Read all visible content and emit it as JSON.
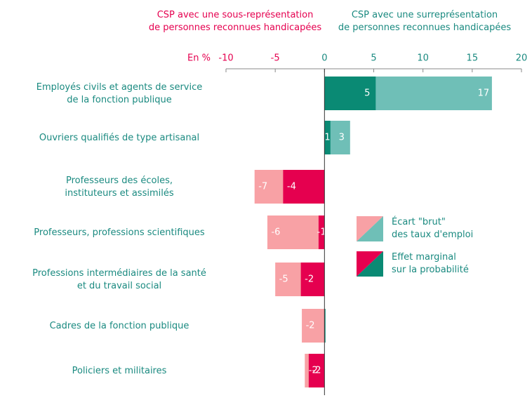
{
  "chart_data": {
    "type": "hbar_overlap",
    "annotations": [
      {
        "text": "CSP avec une sous-représentation\nde personnes reconnues handicapées",
        "color": "#e5004f"
      },
      {
        "text": "CSP avec une surreprésentation\nde personnes reconnues handicapées",
        "color": "#1a8a80"
      }
    ],
    "xlabel": "En %",
    "categories": [
      "Employés civils et agents de service\nde la fonction publique",
      "Ouvriers qualifiés de type artisanal",
      "Professeurs des écoles,\ninstituteurs et assimilés",
      "Professeurs, professions scientifiques",
      "Professions intermédiaires de la santé\net du travail social",
      "Cadres de la fonction publique",
      "Policiers et militaires"
    ],
    "series": [
      {
        "name": "Écart \"brut\"\ndes taux d'emploi",
        "color": {
          "positive": "#6fbfb7",
          "negative": "#f8a1a5"
        },
        "values": [
          17.0,
          2.6,
          -7.1,
          -5.8,
          -5.0,
          -2.3,
          -2.0
        ],
        "value_labels": [
          "17",
          "3",
          "-7",
          "-6",
          "-5",
          "-2",
          "-2"
        ]
      },
      {
        "name": "Effet marginal\nsur la probabilité",
        "color": {
          "positive": "#0a8a74",
          "negative": "#e5004f"
        },
        "values": [
          5.2,
          0.6,
          -4.2,
          -0.6,
          -2.4,
          0.1,
          -1.6
        ],
        "value_labels": [
          "5",
          "1",
          "-4",
          "-1",
          "-2",
          null,
          "-2"
        ]
      }
    ],
    "xlim": [
      -10,
      20
    ],
    "xticks": [
      -10,
      -5,
      0,
      5,
      10,
      15,
      20
    ]
  }
}
